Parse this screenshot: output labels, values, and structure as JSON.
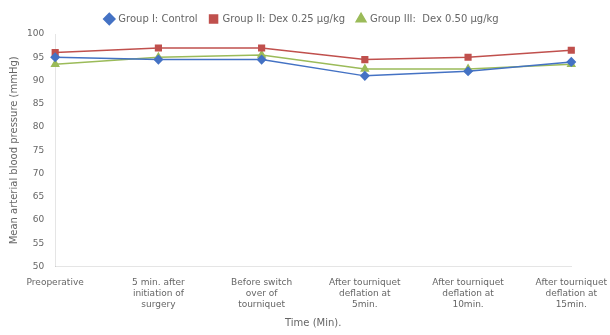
{
  "chart_data": {
    "type": "line",
    "categories": [
      "Preoperative",
      "5 min. after\ninitiation of\nsurgery",
      "Before switch\nover of\ntourniquet",
      "After tourniquet\ndeflation at\n5min.",
      "After tourniquet\ndeflation at\n10min.",
      "After tourniquet\ndeflation at\n15min."
    ],
    "series": [
      {
        "name": "Group I: Control",
        "color": "#4472C4",
        "marker": "diamond",
        "values": [
          95.0,
          94.5,
          94.5,
          91.0,
          92.0,
          94.0
        ]
      },
      {
        "name": "Group II: Dex 0.25 μg/kg",
        "color": "#C0504D",
        "marker": "square",
        "values": [
          96.0,
          97.0,
          97.0,
          94.5,
          95.0,
          96.5
        ]
      },
      {
        "name": "Group III:  Dex 0.50 μg/kg",
        "color": "#9BBB59",
        "marker": "triangle",
        "values": [
          93.5,
          95.0,
          95.5,
          92.5,
          92.5,
          93.5
        ]
      }
    ],
    "xlabel": "Time (Min).",
    "ylabel": "Mean arterial blood pressure (mmHg)",
    "ylim": [
      50,
      100
    ],
    "yticks": [
      50,
      55,
      60,
      65,
      70,
      75,
      80,
      85,
      90,
      95,
      100
    ],
    "grid": false,
    "legend": "top"
  }
}
